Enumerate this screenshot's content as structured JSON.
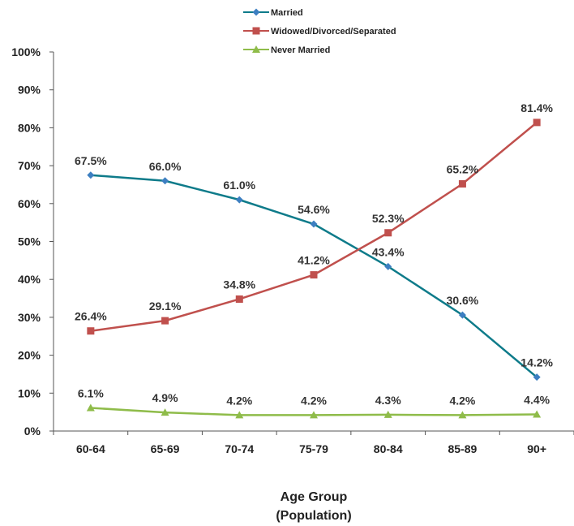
{
  "chart_data": {
    "type": "line",
    "categories": [
      "60-64",
      "65-69",
      "70-74",
      "75-79",
      "80-84",
      "85-89",
      "90+"
    ],
    "series": [
      {
        "name": "Married",
        "values": [
          67.5,
          66.0,
          61.0,
          54.6,
          43.4,
          30.6,
          14.2
        ],
        "color": "#0e7b8a",
        "marker": "diamond",
        "marker_color": "#3d7fc1"
      },
      {
        "name": "Widowed/Divorced/Separated",
        "values": [
          26.4,
          29.1,
          34.8,
          41.2,
          52.3,
          65.2,
          81.4
        ],
        "color": "#c0504d",
        "marker": "square",
        "marker_color": "#c0504d"
      },
      {
        "name": "Never Married",
        "values": [
          6.1,
          4.9,
          4.2,
          4.2,
          4.3,
          4.2,
          4.4
        ],
        "color": "#8fbc4a",
        "marker": "triangle",
        "marker_color": "#8fbc4a"
      }
    ],
    "data_labels": [
      [
        "67.5%",
        "66.0%",
        "61.0%",
        "54.6%",
        "43.4%",
        "30.6%",
        "14.2%"
      ],
      [
        "26.4%",
        "29.1%",
        "34.8%",
        "41.2%",
        "52.3%",
        "65.2%",
        "81.4%"
      ],
      [
        "6.1%",
        "4.9%",
        "4.2%",
        "4.2%",
        "4.3%",
        "4.2%",
        "4.4%"
      ]
    ],
    "y_ticks": [
      "0%",
      "10%",
      "20%",
      "30%",
      "40%",
      "50%",
      "60%",
      "70%",
      "80%",
      "90%",
      "100%"
    ],
    "ylim": [
      0,
      100
    ],
    "xlabel": "Age Group",
    "xlabel_sub": "(Population)",
    "legend_position": "top",
    "grid": false
  }
}
